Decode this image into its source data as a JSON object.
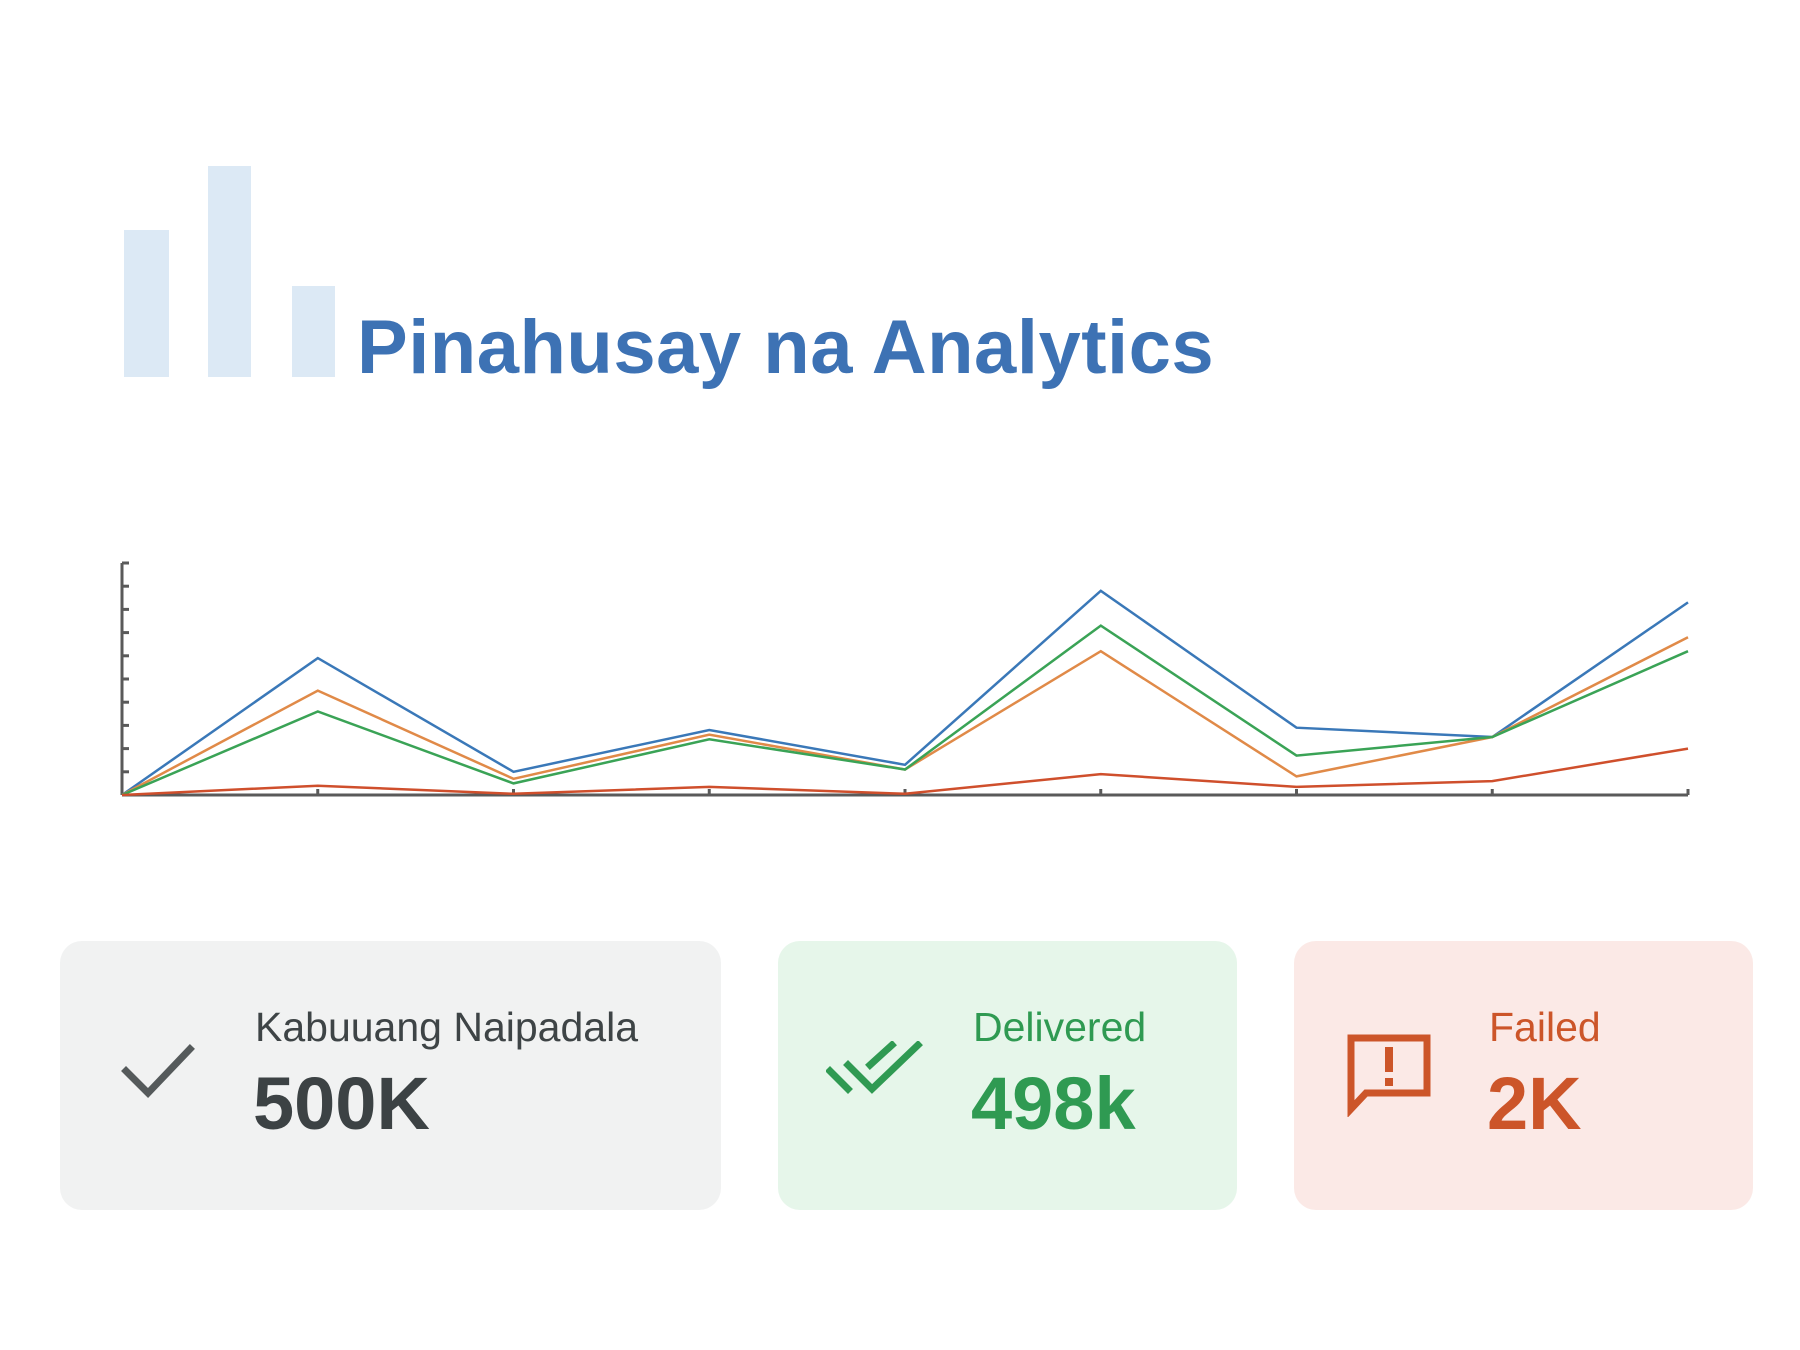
{
  "header": {
    "title": "Pinahusay na Analytics",
    "logo_icon": "bar-chart-icon",
    "logo_color": "#dce9f5",
    "title_color": "#3d72b4"
  },
  "chart_data": {
    "type": "line",
    "title": "",
    "xlabel": "",
    "ylabel": "",
    "x": [
      1,
      2,
      3,
      4,
      5,
      6,
      7,
      8,
      9
    ],
    "xlim": [
      1,
      9
    ],
    "ylim": [
      0,
      100
    ],
    "grid": false,
    "series": [
      {
        "color": "#3a78b8",
        "values": [
          0,
          59,
          10,
          28,
          13,
          88,
          29,
          25,
          83
        ]
      },
      {
        "color": "#e08a48",
        "values": [
          0,
          45,
          7,
          26,
          11,
          62,
          8,
          25,
          68
        ]
      },
      {
        "color": "#3aa356",
        "values": [
          0,
          36,
          5,
          24,
          11,
          73,
          17,
          25,
          62
        ]
      },
      {
        "color": "#cf4f2c",
        "values": [
          0,
          4,
          0.5,
          3.5,
          0.5,
          9,
          3.5,
          6,
          20
        ]
      }
    ]
  },
  "stats": {
    "total": {
      "label": "Kabuuang Naipadala",
      "value": "500K",
      "icon": "check-icon",
      "color": "#3c4244",
      "background": "#f1f2f2"
    },
    "delivered": {
      "label": "Delivered",
      "value": "498k",
      "icon": "double-check-icon",
      "color": "#2f9a52",
      "background": "#e6f6ea"
    },
    "failed": {
      "label": "Failed",
      "value": "2K",
      "icon": "alert-message-icon",
      "color": "#cc5529",
      "background": "#fbe9e6"
    }
  }
}
